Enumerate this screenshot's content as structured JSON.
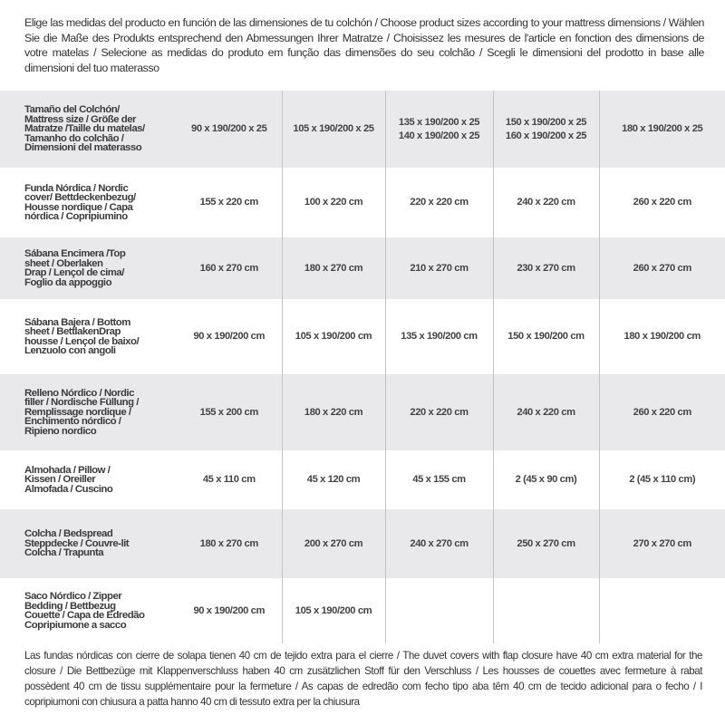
{
  "intro": "Elige las medidas del producto en función de las dimensiones de tu colchón / Choose product sizes according to your mattress dimensions / Wählen Sie die Maße des Produkts entsprechend den Abmessungen Ihrer Matratze / Choisissez les mesures de l'article en fonction des dimensions de votre matelas / Selecione as medidas do produto em função das dimensões do seu colchão / Scegli le dimensioni del prodotto in base alle dimensioni del tuo materasso",
  "rows": [
    {
      "label": [
        "Tamaño del Colchón/",
        "Mattress size / Größe der",
        "Matratze /Taille du matelas/",
        "Tamanho do colchão /",
        "Dimensioni del materasso"
      ],
      "cells": [
        [
          "90 x 190/200 x 25"
        ],
        [
          "105 x 190/200 x 25"
        ],
        [
          "135 x 190/200 x 25",
          "140 x 190/200 x 25"
        ],
        [
          "150 x 190/200 x 25",
          "160 x 190/200 x 25"
        ],
        [
          "180 x 190/200 x 25"
        ]
      ]
    },
    {
      "label": [
        "Funda Nórdica /  Nordic",
        "cover/ Bettdeckenbezug/",
        "Housse nordique  / Capa",
        "nórdica / Copripiumino"
      ],
      "cells": [
        [
          "155 x 220 cm"
        ],
        [
          "100 x 220 cm"
        ],
        [
          "220 x 220 cm"
        ],
        [
          "240 x 220 cm"
        ],
        [
          "260 x 220 cm"
        ]
      ]
    },
    {
      "label": [
        "Sábana Encimera /Top",
        "sheet / Oberlaken",
        "Drap / Lençol de cima/",
        "Foglio da appoggio"
      ],
      "cells": [
        [
          "160 x 270 cm"
        ],
        [
          "180 x 270 cm"
        ],
        [
          "210 x 270 cm"
        ],
        [
          "230 x 270 cm"
        ],
        [
          "260 x 270 cm"
        ]
      ]
    },
    {
      "label": [
        "Sábana Bajera / Bottom",
        "sheet / BettlakenDrap",
        "housse / Lençol de baixo/",
        "Lenzuolo con angoli"
      ],
      "cells": [
        [
          "90 x 190/200 cm"
        ],
        [
          "105 x 190/200 cm"
        ],
        [
          "135 x 190/200 cm"
        ],
        [
          "150 x 190/200 cm"
        ],
        [
          "180 x 190/200 cm"
        ]
      ]
    },
    {
      "label": [
        "Relleno Nórdico / Nordic",
        "filler / Nordische Füllung /",
        "Remplissage nordique /",
        "Enchimento nórdico /",
        "Ripieno nordico"
      ],
      "cells": [
        [
          "155 x 200 cm"
        ],
        [
          "180 x 220 cm"
        ],
        [
          "220 x 220 cm"
        ],
        [
          "240 x 220 cm"
        ],
        [
          "260 x 220 cm"
        ]
      ]
    },
    {
      "label": [
        "Almohada  / Pillow /",
        "Kissen / Oreiller",
        "Almofada / Cuscino"
      ],
      "cells": [
        [
          "45 x 110 cm"
        ],
        [
          "45 x 120 cm"
        ],
        [
          "45 x 155 cm"
        ],
        [
          "2 (45 x 90 cm)"
        ],
        [
          "2 (45 x 110 cm)"
        ]
      ]
    },
    {
      "label": [
        "Colcha / Bedspread",
        "Steppdecke / Couvre-lit",
        "Colcha / Trapunta"
      ],
      "cells": [
        [
          "180 x 270 cm"
        ],
        [
          "200 x 270 cm"
        ],
        [
          "240 x 270 cm"
        ],
        [
          "250 x 270 cm"
        ],
        [
          "270 x 270 cm"
        ]
      ]
    },
    {
      "label": [
        "Saco Nórdico / Zipper",
        "Bedding / Bettbezug",
        "Couette  / Capa de Edredão",
        "Copripiumone a sacco"
      ],
      "cells": [
        [
          "90 x 190/200 cm"
        ],
        [
          "105 x 190/200 cm"
        ],
        [],
        [],
        []
      ]
    }
  ],
  "footer": "Las fundas nórdicas con cierre de solapa tienen 40 cm de tejido extra para el cierre  / The duvet covers with flap closure have 40 cm extra material for the closure / Die Bettbezüge mit Klappenverschluss haben 40 cm zusätzlichen Stoff für den Verschluss / Les housses de couettes avec fermeture à rabat possèdent 40 cm de tissu supplémentaire pour la fermeture / As capas de edredão com fecho tipo aba têm 40 cm de tecido adicional para o fecho / I copripiumoni con chiusura a patta hanno 40 cm di tessuto extra per la chiusura",
  "colors": {
    "shade": "#e9e9eb",
    "text": "#3a3a3a",
    "divider": "#c4c4c4"
  }
}
